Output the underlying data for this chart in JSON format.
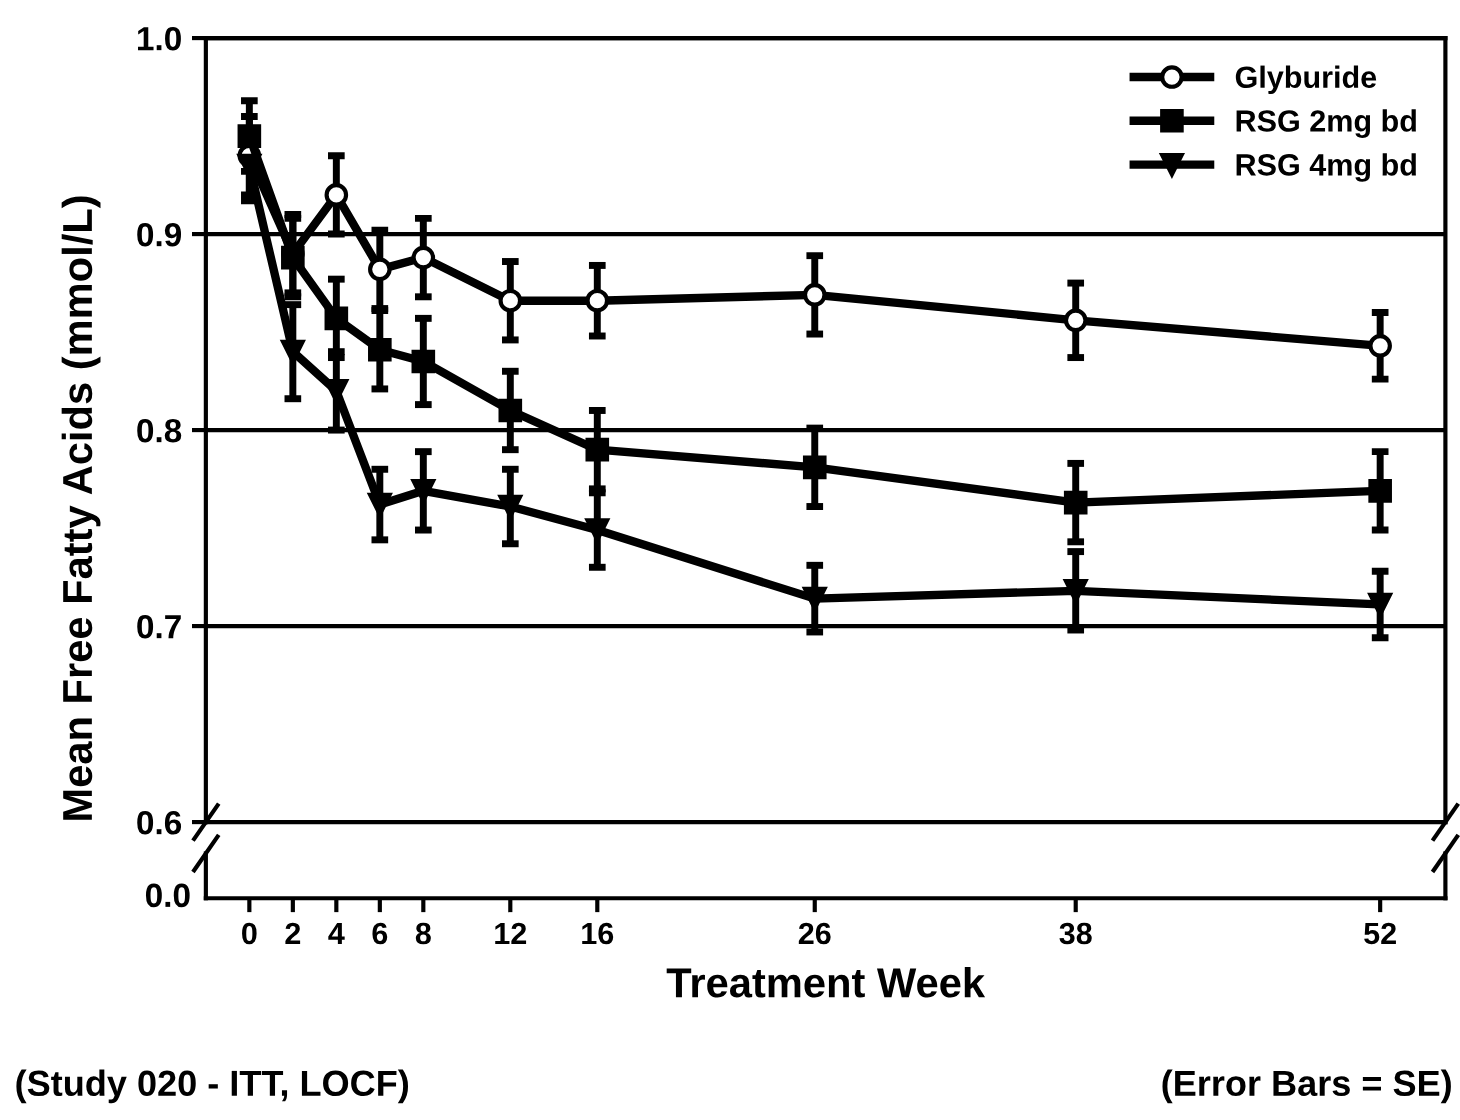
{
  "chart_data": {
    "type": "line",
    "xlabel": "Treatment Week",
    "ylabel": "Mean Free Fatty Acids (mmol/L)",
    "x": [
      0,
      2,
      4,
      6,
      8,
      12,
      16,
      26,
      38,
      52
    ],
    "xlim": [
      -2,
      55
    ],
    "xticks": [
      0,
      2,
      4,
      6,
      8,
      12,
      16,
      26,
      38,
      52
    ],
    "ylim": [
      0.6,
      1.0
    ],
    "yticks": [
      {
        "value": 0.6,
        "label": "0.6"
      },
      {
        "value": 0.7,
        "label": "0.7"
      },
      {
        "value": 0.8,
        "label": "0.8"
      },
      {
        "value": 0.9,
        "label": "0.9"
      },
      {
        "value": 1.0,
        "label": "1.0"
      }
    ],
    "grid": "y",
    "legend": "top right",
    "line_style": "solid",
    "series": [
      {
        "name": "Glyburide",
        "color": "#000000",
        "marker": "circle",
        "values": [
          0.94,
          0.89,
          0.92,
          0.882,
          0.888,
          0.866,
          0.866,
          0.869,
          0.856,
          0.843
        ],
        "errors": [
          0.02,
          0.02,
          0.02,
          0.02,
          0.02,
          0.02,
          0.018,
          0.02,
          0.019,
          0.017
        ]
      },
      {
        "name": "RSG 2mg bd",
        "color": "#000000",
        "marker": "square",
        "values": [
          0.95,
          0.888,
          0.857,
          0.841,
          0.835,
          0.81,
          0.79,
          0.781,
          0.763,
          0.769
        ],
        "errors": [
          0.018,
          0.02,
          0.02,
          0.02,
          0.022,
          0.02,
          0.02,
          0.02,
          0.02,
          0.02
        ]
      },
      {
        "name": "RSG 4mg bd",
        "color": "#000000",
        "marker": "triangle",
        "values": [
          0.935,
          0.84,
          0.82,
          0.762,
          0.769,
          0.761,
          0.749,
          0.714,
          0.718,
          0.711
        ],
        "errors": [
          0.018,
          0.024,
          0.02,
          0.018,
          0.02,
          0.019,
          0.019,
          0.017,
          0.02,
          0.017
        ]
      }
    ],
    "annotations": [
      "0.0",
      "(Study 020 - ITT, LOCF)",
      "(Error Bars = SE)"
    ]
  }
}
